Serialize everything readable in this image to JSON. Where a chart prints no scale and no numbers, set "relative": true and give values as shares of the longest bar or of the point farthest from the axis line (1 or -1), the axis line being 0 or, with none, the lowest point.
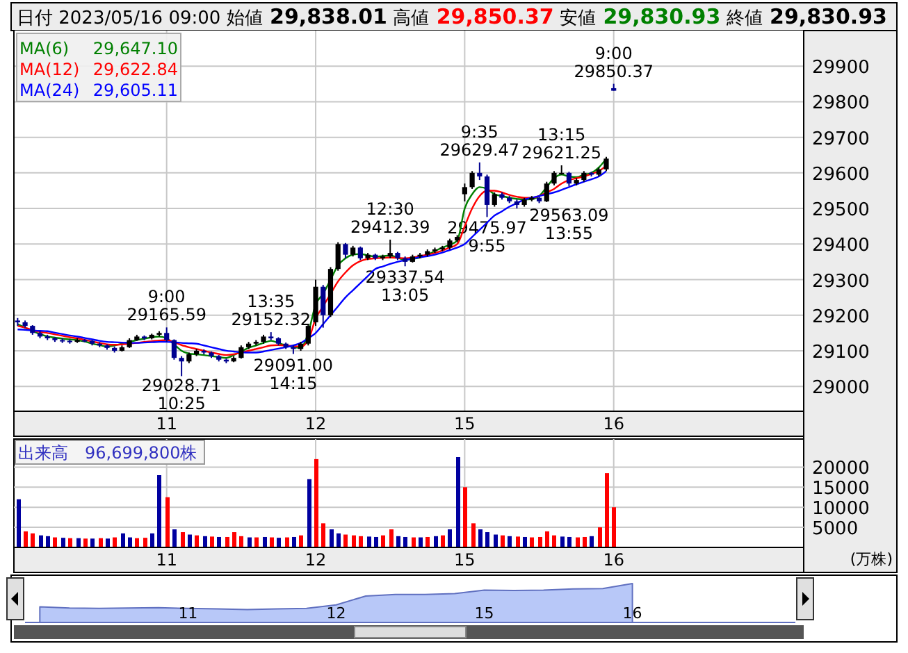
{
  "chart_data": [
    {
      "type": "candlestick",
      "title": "日付 2023/05/16 09:00 始値 29,838.01 高値 29,850.37 安値 29,830.93 終値 29,830.93",
      "categories": [
        null,
        null,
        null,
        null,
        null,
        null,
        null,
        null,
        null,
        null,
        null,
        null,
        null,
        null,
        null,
        null,
        null,
        null,
        null,
        null,
        "11",
        null,
        null,
        null,
        null,
        null,
        null,
        null,
        null,
        null,
        null,
        null,
        null,
        null,
        null,
        null,
        null,
        null,
        null,
        null,
        "12",
        null,
        null,
        null,
        null,
        null,
        null,
        null,
        null,
        null,
        null,
        null,
        null,
        null,
        null,
        null,
        null,
        null,
        null,
        null,
        "15",
        null,
        null,
        null,
        null,
        null,
        null,
        null,
        null,
        null,
        null,
        null,
        null,
        null,
        null,
        null,
        null,
        null,
        null,
        null,
        "16",
        null,
        null,
        null,
        null,
        null,
        null,
        null,
        null,
        null,
        null,
        null,
        null,
        null,
        null,
        null,
        null,
        null,
        null,
        null,
        null,
        null,
        null,
        null,
        null,
        null
      ],
      "ohlc": [
        [
          29185,
          29192,
          29170,
          29180
        ],
        [
          29180,
          29185,
          29165,
          29170
        ],
        [
          29170,
          29172,
          29145,
          29150
        ],
        [
          29150,
          29155,
          29135,
          29140
        ],
        [
          29140,
          29145,
          29130,
          29135
        ],
        [
          29135,
          29138,
          29125,
          29130
        ],
        [
          29130,
          29135,
          29122,
          29128
        ],
        [
          29128,
          29132,
          29120,
          29125
        ],
        [
          29125,
          29135,
          29122,
          29130
        ],
        [
          29130,
          29133,
          29124,
          29128
        ],
        [
          29128,
          29130,
          29115,
          29120
        ],
        [
          29120,
          29124,
          29110,
          29115
        ],
        [
          29115,
          29118,
          29103,
          29108
        ],
        [
          29108,
          29112,
          29095,
          29100
        ],
        [
          29100,
          29115,
          29098,
          29110
        ],
        [
          29110,
          29135,
          29108,
          29130
        ],
        [
          29130,
          29145,
          29128,
          29140
        ],
        [
          29140,
          29143,
          29130,
          29135
        ],
        [
          29135,
          29148,
          29132,
          29145
        ],
        [
          29145,
          29155,
          29140,
          29150
        ],
        [
          29150,
          29165.59,
          29125,
          29130
        ],
        [
          29130,
          29132,
          29075,
          29080
        ],
        [
          29080,
          29085,
          29028.71,
          29070
        ],
        [
          29070,
          29095,
          29065,
          29090
        ],
        [
          29090,
          29105,
          29085,
          29100
        ],
        [
          29100,
          29104,
          29090,
          29095
        ],
        [
          29095,
          29098,
          29080,
          29085
        ],
        [
          29085,
          29088,
          29070,
          29075
        ],
        [
          29075,
          29078,
          29065,
          29070
        ],
        [
          29070,
          29085,
          29068,
          29080
        ],
        [
          29080,
          29115,
          29078,
          29110
        ],
        [
          29110,
          29125,
          29105,
          29120
        ],
        [
          29120,
          29130,
          29115,
          29125
        ],
        [
          29125,
          29145,
          29120,
          29140
        ],
        [
          29140,
          29152.32,
          29130,
          29135
        ],
        [
          29135,
          29138,
          29115,
          29120
        ],
        [
          29120,
          29123,
          29105,
          29110
        ],
        [
          29110,
          29115,
          29091.0,
          29105
        ],
        [
          29105,
          29125,
          29100,
          29120
        ],
        [
          29120,
          29175,
          29115,
          29170
        ],
        [
          29180,
          29300,
          29170,
          29280
        ],
        [
          29280,
          29285,
          29165,
          29200
        ],
        [
          29200,
          29335,
          29195,
          29330
        ],
        [
          29330,
          29405,
          29325,
          29400
        ],
        [
          29400,
          29403,
          29360,
          29370
        ],
        [
          29370,
          29395,
          29365,
          29390
        ],
        [
          29390,
          29393,
          29355,
          29360
        ],
        [
          29360,
          29375,
          29355,
          29370
        ],
        [
          29370,
          29373,
          29355,
          29360
        ],
        [
          29360,
          29370,
          29355,
          29365
        ],
        [
          29365,
          29412.39,
          29360,
          29375
        ],
        [
          29375,
          29378,
          29355,
          29360
        ],
        [
          29360,
          29365,
          29337.54,
          29350
        ],
        [
          29350,
          29370,
          29348,
          29365
        ],
        [
          29365,
          29375,
          29360,
          29370
        ],
        [
          29370,
          29385,
          29365,
          29380
        ],
        [
          29380,
          29390,
          29375,
          29385
        ],
        [
          29385,
          29395,
          29380,
          29390
        ],
        [
          29390,
          29415,
          29385,
          29410
        ],
        [
          29410,
          29425,
          29405,
          29420
        ],
        [
          29540,
          29570,
          29520,
          29560
        ],
        [
          29560,
          29605,
          29555,
          29600
        ],
        [
          29600,
          29629.47,
          29580,
          29590
        ],
        [
          29590,
          29595,
          29475.97,
          29510
        ],
        [
          29510,
          29545,
          29505,
          29540
        ],
        [
          29540,
          29545,
          29525,
          29530
        ],
        [
          29530,
          29535,
          29515,
          29520
        ],
        [
          29520,
          29525,
          29500,
          29510
        ],
        [
          29510,
          29530,
          29505,
          29525
        ],
        [
          29525,
          29535,
          29520,
          29530
        ],
        [
          29530,
          29533,
          29515,
          29520
        ],
        [
          29520,
          29575,
          29518,
          29570
        ],
        [
          29570,
          29605,
          29565,
          29600
        ],
        [
          29600,
          29621.25,
          29595,
          29600
        ],
        [
          29600,
          29603,
          29563.09,
          29570
        ],
        [
          29570,
          29585,
          29565,
          29580
        ],
        [
          29580,
          29605,
          29575,
          29600
        ],
        [
          29600,
          29603,
          29590,
          29595
        ],
        [
          29595,
          29615,
          29590,
          29610
        ],
        [
          29610,
          29645,
          29605,
          29640
        ],
        [
          29838.01,
          29850.37,
          29830.93,
          29830.93
        ],
        null,
        null,
        null,
        null,
        null,
        null,
        null,
        null,
        null,
        null,
        null,
        null,
        null,
        null,
        null,
        null,
        null,
        null,
        null,
        null,
        null,
        null,
        null,
        null,
        null
      ],
      "colors": [
        "#000090",
        "#000090",
        "#000090",
        "#000090",
        "#000090",
        "#000090",
        "#000090",
        "#000090",
        "#000000",
        "#000090",
        "#000090",
        "#000090",
        "#000090",
        "#000090",
        "#000000",
        "#000000",
        "#000000",
        "#000090",
        "#000000",
        "#000000",
        "#000090",
        "#000090",
        "#000090",
        "#000000",
        "#000000",
        "#000090",
        "#000090",
        "#000090",
        "#000090",
        "#000000",
        "#000000",
        "#000000",
        "#000000",
        "#000000",
        "#000090",
        "#000090",
        "#000090",
        "#000090",
        "#000000",
        "#000000",
        "#000000",
        "#000090",
        "#000000",
        "#000000",
        "#000090",
        "#000000",
        "#000090",
        "#000000",
        "#000090",
        "#000000",
        "#000000",
        "#000090",
        "#000090",
        "#000000",
        "#000000",
        "#000000",
        "#000000",
        "#000000",
        "#000000",
        "#000000",
        "#000000",
        "#000000",
        "#000090",
        "#000090",
        "#000000",
        "#000090",
        "#000090",
        "#000090",
        "#000000",
        "#000000",
        "#000090",
        "#000000",
        "#000000",
        "#000000",
        "#000090",
        "#000000",
        "#000000",
        "#000090",
        "#000000",
        "#000000",
        "#000090",
        null,
        null,
        null,
        null,
        null,
        null,
        null,
        null,
        null,
        null,
        null,
        null,
        null,
        null,
        null,
        null,
        null,
        null,
        null,
        null,
        null,
        null,
        null,
        null,
        null
      ],
      "series": [
        {
          "name": "MA(6)",
          "type": "line",
          "color": "#008000",
          "values": [
            29175,
            29165,
            29155,
            29147,
            29140,
            29137,
            29134,
            29132,
            29130,
            29126,
            29120,
            29116,
            29112,
            29115,
            29120,
            29125,
            29130,
            29134,
            29138,
            29140,
            29135,
            29118,
            29100,
            29092,
            29090,
            29088,
            29085,
            29082,
            29080,
            29088,
            29098,
            29108,
            29115,
            29122,
            29128,
            29122,
            29115,
            29110,
            29108,
            29150,
            29230,
            29260,
            29300,
            29340,
            29360,
            29370,
            29372,
            29368,
            29365,
            29366,
            29368,
            29362,
            29355,
            29358,
            29362,
            29370,
            29380,
            29390,
            29398,
            29410,
            29500,
            29540,
            29560,
            29555,
            29540,
            29535,
            29530,
            29527,
            29525,
            29526,
            29535,
            29560,
            29585,
            29595,
            29590,
            29588,
            29595,
            29600,
            29615,
            29640,
            null,
            null,
            null,
            null,
            null,
            null,
            null,
            null,
            null,
            null,
            null,
            null,
            null,
            null,
            null,
            null,
            null,
            null,
            null,
            null,
            null,
            null,
            null,
            null,
            null,
            null
          ]
        },
        {
          "name": "MA(12)",
          "type": "line",
          "color": "#ff0000",
          "values": [
            29170,
            29165,
            29158,
            29153,
            29150,
            29146,
            29142,
            29138,
            29135,
            29131,
            29126,
            29122,
            29118,
            29117,
            29118,
            29120,
            29122,
            29125,
            29127,
            29129,
            29130,
            29124,
            29116,
            29110,
            29105,
            29100,
            29095,
            29091,
            29088,
            29090,
            29095,
            29100,
            29105,
            29110,
            29115,
            29116,
            29115,
            29113,
            29112,
            29130,
            29190,
            29225,
            29260,
            29295,
            29320,
            29340,
            29352,
            29358,
            29360,
            29361,
            29362,
            29361,
            29360,
            29362,
            29366,
            29370,
            29375,
            29382,
            29390,
            29400,
            29450,
            29500,
            29535,
            29550,
            29550,
            29545,
            29538,
            29533,
            29530,
            29530,
            29535,
            29545,
            29555,
            29570,
            29580,
            29585,
            29590,
            29597,
            29605,
            29620,
            null,
            null,
            null,
            null,
            null,
            null,
            null,
            null,
            null,
            null,
            null,
            null,
            null,
            null,
            null,
            null,
            null,
            null,
            null,
            null,
            null,
            null,
            null,
            null,
            null,
            null
          ]
        },
        {
          "name": "MA(24)",
          "type": "line",
          "color": "#0000ff",
          "values": [
            29160,
            29159,
            29157,
            29156,
            29155,
            29151,
            29147,
            29143,
            29140,
            29136,
            29132,
            29128,
            29125,
            29124,
            29123,
            29122,
            29122,
            29123,
            29124,
            29125,
            29125,
            29124,
            29122,
            29121,
            29120,
            29115,
            29110,
            29105,
            29100,
            29098,
            29096,
            29095,
            29095,
            29098,
            29102,
            29106,
            29110,
            29115,
            29122,
            29135,
            29150,
            29175,
            29200,
            29225,
            29250,
            29270,
            29290,
            29310,
            29330,
            29337,
            29344,
            29350,
            29355,
            29359,
            29363,
            29366,
            29370,
            29376,
            29383,
            29390,
            29400,
            29420,
            29440,
            29460,
            29480,
            29492,
            29505,
            29515,
            29525,
            29530,
            29535,
            29540,
            29545,
            29552,
            29560,
            29568,
            29575,
            29582,
            29590,
            29605,
            null,
            null,
            null,
            null,
            null,
            null,
            null,
            null,
            null,
            null,
            null,
            null,
            null,
            null,
            null,
            null,
            null,
            null,
            null,
            null,
            null,
            null,
            null,
            null,
            null,
            null
          ]
        }
      ],
      "ylim": [
        28930,
        30000
      ],
      "yticks": [
        29000,
        29100,
        29200,
        29300,
        29400,
        29500,
        29600,
        29700,
        29800,
        29900
      ],
      "grid": true,
      "legend": "top left",
      "annotations": [
        "29,647.10",
        "29,622.84",
        "29,605.11",
        {
          "text": "9:00\n29165.59",
          "y": 29165.59
        },
        {
          "text": "29028.71\n10:25",
          "y": 29028.71
        },
        {
          "text": "13:35\n29152.32",
          "y": 29152.32
        },
        {
          "text": "29091.00\n14:15",
          "y": 29091.0
        },
        {
          "text": "12:30\n29412.39",
          "y": 29412.39
        },
        {
          "text": "29337.54\n13:05",
          "y": 29337.54
        },
        {
          "text": "9:35\n29629.47",
          "y": 29629.47
        },
        {
          "text": "29475.97\n9:55",
          "y": 29475.97
        },
        {
          "text": "13:15\n29621.25",
          "y": 29621.25
        },
        {
          "text": "29563.09\n13:55",
          "y": 29563.09
        },
        {
          "text": "9:00\n29850.37",
          "y": 29850.37
        }
      ]
    },
    {
      "type": "bar",
      "title": "出来高　96,699,800株",
      "ylabel": "(万株)",
      "categories": [
        null,
        null,
        null,
        null,
        null,
        null,
        null,
        null,
        null,
        null,
        null,
        null,
        null,
        null,
        null,
        null,
        null,
        null,
        null,
        null,
        "11",
        null,
        null,
        null,
        null,
        null,
        null,
        null,
        null,
        null,
        null,
        null,
        null,
        null,
        null,
        null,
        null,
        null,
        null,
        null,
        "12",
        null,
        null,
        null,
        null,
        null,
        null,
        null,
        null,
        null,
        null,
        null,
        null,
        null,
        null,
        null,
        null,
        null,
        null,
        null,
        "15",
        null,
        null,
        null,
        null,
        null,
        null,
        null,
        null,
        null,
        null,
        null,
        null,
        null,
        null,
        null,
        null,
        null,
        null,
        null,
        "16",
        null,
        null,
        null,
        null,
        null,
        null,
        null,
        null,
        null,
        null,
        null,
        null,
        null,
        null,
        null,
        null,
        null,
        null,
        null,
        null,
        null,
        null,
        null,
        null,
        null
      ],
      "values": [
        12000,
        4000,
        3500,
        3000,
        2800,
        2500,
        2400,
        2300,
        2300,
        2200,
        2200,
        2300,
        2200,
        2500,
        3500,
        2500,
        2300,
        2400,
        3500,
        18000,
        12500,
        4500,
        3800,
        3200,
        3000,
        2800,
        2700,
        2600,
        2600,
        3800,
        2800,
        2500,
        2500,
        2600,
        2500,
        2400,
        2500,
        2600,
        3000,
        17000,
        22000,
        6000,
        4500,
        3500,
        3200,
        3000,
        2800,
        2700,
        2600,
        3000,
        4500,
        2800,
        2600,
        2500,
        2500,
        2600,
        2800,
        3000,
        4500,
        22500,
        15000,
        6000,
        4500,
        3800,
        3200,
        3000,
        2800,
        2700,
        2600,
        2500,
        2600,
        4000,
        3000,
        2700,
        2600,
        2500,
        2600,
        2800,
        5000,
        18500,
        10000,
        null,
        null,
        null,
        null,
        null,
        null,
        null,
        null,
        null,
        null,
        null,
        null,
        null,
        null,
        null,
        null,
        null,
        null,
        null,
        null,
        null,
        null,
        null,
        null,
        null
      ],
      "colors": [
        "#0000a0",
        "#ff0000",
        "#ff0000",
        "#0000a0",
        "#0000a0",
        "#ff0000",
        "#0000a0",
        "#ff0000",
        "#0000a0",
        "#ff0000",
        "#0000a0",
        "#ff0000",
        "#0000a0",
        "#ff0000",
        "#0000a0",
        "#0000a0",
        "#ff0000",
        "#ff0000",
        "#0000a0",
        "#0000a0",
        "#ff0000",
        "#0000a0",
        "#ff0000",
        "#0000a0",
        "#ff0000",
        "#0000a0",
        "#ff0000",
        "#0000a0",
        "#ff0000",
        "#ff0000",
        "#ff0000",
        "#0000a0",
        "#ff0000",
        "#0000a0",
        "#ff0000",
        "#0000a0",
        "#ff0000",
        "#0000a0",
        "#ff0000",
        "#0000a0",
        "#ff0000",
        "#ff0000",
        "#0000a0",
        "#0000a0",
        "#ff0000",
        "#ff0000",
        "#ff0000",
        "#0000a0",
        "#0000a0",
        "#ff0000",
        "#ff0000",
        "#0000a0",
        "#0000a0",
        "#ff0000",
        "#0000a0",
        "#ff0000",
        "#0000a0",
        "#ff0000",
        "#0000a0",
        "#0000a0",
        "#ff0000",
        "#ff0000",
        "#0000a0",
        "#0000a0",
        "#0000a0",
        "#ff0000",
        "#0000a0",
        "#ff0000",
        "#0000a0",
        "#ff0000",
        "#ff0000",
        "#ff0000",
        "#ff0000",
        "#0000a0",
        "#0000a0",
        "#ff0000",
        "#ff0000",
        "#0000a0",
        "#ff0000",
        "#ff0000",
        "#ff0000",
        null,
        null,
        null,
        null,
        null,
        null,
        null,
        null,
        null,
        null,
        null,
        null,
        null,
        null,
        null,
        null,
        null,
        null,
        null,
        null,
        null,
        null,
        null,
        null,
        null
      ],
      "ylim": [
        0,
        27000
      ],
      "yticks": [
        5000,
        10000,
        15000,
        20000
      ],
      "grid": true
    },
    {
      "type": "area",
      "relative": true,
      "color": "#b8c8f8",
      "categories": [
        null,
        null,
        null,
        null,
        null,
        "11",
        null,
        null,
        null,
        null,
        "12",
        null,
        null,
        null,
        null,
        "15",
        null,
        null,
        null,
        null,
        "16",
        null,
        null,
        null,
        null,
        null
      ],
      "values": [
        0.4,
        0.37,
        0.36,
        0.37,
        0.38,
        0.36,
        0.35,
        0.33,
        0.35,
        0.36,
        0.45,
        0.68,
        0.72,
        0.72,
        0.74,
        0.83,
        0.82,
        0.83,
        0.86,
        0.87,
        1.0,
        null,
        null,
        null,
        null,
        null
      ],
      "tick_labels": "x"
    }
  ]
}
